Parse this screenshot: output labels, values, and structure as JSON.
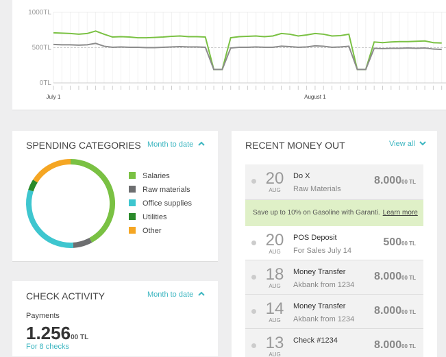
{
  "chart_data": [
    {
      "type": "line",
      "categories": [
        "July 1",
        null,
        null,
        null,
        null,
        null,
        null,
        null,
        null,
        null,
        null,
        null,
        null,
        null,
        null,
        null,
        null,
        null,
        null,
        null,
        null,
        null,
        null,
        null,
        null,
        null,
        null,
        null,
        null,
        null,
        null,
        "August 1",
        null,
        null,
        null,
        null,
        null,
        null,
        null,
        null,
        null,
        null,
        null,
        null,
        null,
        null,
        null
      ],
      "series": [
        {
          "color": "#7ac143",
          "values": [
            710,
            705,
            700,
            690,
            700,
            735,
            690,
            650,
            655,
            650,
            640,
            640,
            645,
            650,
            660,
            665,
            655,
            655,
            650,
            190,
            190,
            640,
            655,
            660,
            665,
            655,
            665,
            700,
            690,
            665,
            680,
            700,
            690,
            665,
            670,
            690,
            190,
            190,
            580,
            570,
            580,
            585,
            585,
            590,
            595,
            570,
            565
          ]
        },
        {
          "color": "#8c8c8c",
          "values": [
            545,
            540,
            540,
            535,
            540,
            560,
            520,
            505,
            510,
            505,
            505,
            500,
            500,
            505,
            510,
            515,
            510,
            510,
            505,
            190,
            190,
            495,
            505,
            505,
            510,
            505,
            505,
            520,
            515,
            505,
            510,
            525,
            520,
            505,
            510,
            520,
            190,
            190,
            490,
            485,
            490,
            490,
            495,
            490,
            495,
            480,
            475
          ]
        }
      ],
      "ylim": [
        0,
        1000
      ],
      "yticks": [
        {
          "value": 0,
          "label": "0TL"
        },
        {
          "value": 500,
          "label": "500TL"
        },
        {
          "value": 1000,
          "label": "1000TL"
        }
      ],
      "grid": true
    },
    {
      "type": "pie",
      "categories": [
        "Salaries",
        "Raw materials",
        "Office supplies",
        "Utilities",
        "Other"
      ],
      "values": [
        42,
        7,
        31,
        4,
        16
      ],
      "colors": [
        "#7ac143",
        "#6d6e70",
        "#3ec6cf",
        "#2a8a2a",
        "#f5a623"
      ]
    }
  ],
  "spending": {
    "title": "SPENDING CATEGORIES",
    "period": "Month to date"
  },
  "check_activity": {
    "title": "CHECK ACTIVITY",
    "period": "Month to date",
    "label": "Payments",
    "amount": "1.256",
    "amount_suffix": "00 TL",
    "note": "For 8 checks"
  },
  "money_out": {
    "title": "RECENT MONEY OUT",
    "view_all": "View all",
    "promo": {
      "text": "Save up to 10% on Gasoline with Garanti.",
      "link": "Learn more"
    },
    "transactions": [
      {
        "day": "20",
        "month": "AUG",
        "title": "Do X",
        "subtitle": "Raw Materials",
        "amount": "8.000",
        "suffix": "00 TL"
      },
      {
        "day": "20",
        "month": "AUG",
        "title": "POS Deposit",
        "subtitle": "For Sales July 14",
        "amount": "500",
        "suffix": "00 TL"
      },
      {
        "day": "18",
        "month": "AUG",
        "title": "Money Transfer",
        "subtitle": "Akbank from 1234",
        "amount": "8.000",
        "suffix": "00 TL"
      },
      {
        "day": "14",
        "month": "AUG",
        "title": "Money Transfer",
        "subtitle": "Akbank from 1234",
        "amount": "8.000",
        "suffix": "00 TL"
      },
      {
        "day": "13",
        "month": "AUG",
        "title": "Check #1234",
        "amount": "8.000",
        "suffix": "00 TL"
      }
    ]
  }
}
